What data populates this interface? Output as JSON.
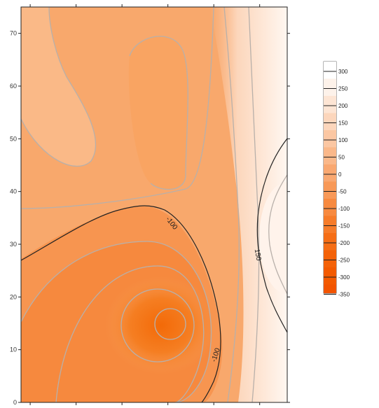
{
  "chart_data": {
    "type": "contour",
    "title": "",
    "xlabel": "",
    "ylabel": "",
    "ylim": [
      0,
      75
    ],
    "y_ticks": [
      0,
      10,
      20,
      30,
      40,
      50,
      60,
      70
    ],
    "x_tick_count": 6,
    "features": [
      {
        "kind": "minimum",
        "x_frac": 0.56,
        "y": 15,
        "value": -350
      },
      {
        "kind": "maximum",
        "x_frac": 0.99,
        "y": 30,
        "value": 300
      }
    ],
    "contour_labels": [
      {
        "text": "-100",
        "y": 34
      },
      {
        "text": "-100",
        "y": 9
      },
      {
        "text": "150",
        "y": 28
      }
    ],
    "legend": {
      "placement": "right",
      "levels": [
        "300",
        "250",
        "200",
        "150",
        "100",
        "50",
        "0",
        "-50",
        "-100",
        "-150",
        "-200",
        "-250",
        "-300",
        "-350"
      ],
      "colors": [
        "#ffffff",
        "#fdf2ea",
        "#fde5d4",
        "#fcd6bc",
        "#fbc7a3",
        "#fab88a",
        "#f9a871",
        "#f89958",
        "#f78a40",
        "#f67c2a",
        "#f56e16",
        "#f46208",
        "#f35a00",
        "#f25400"
      ]
    }
  }
}
